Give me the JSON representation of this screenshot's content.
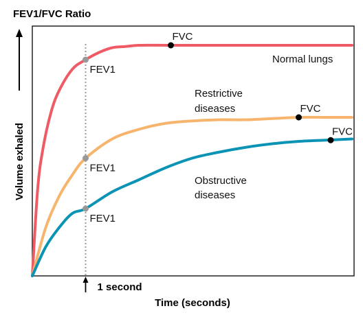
{
  "chart_data": {
    "type": "line",
    "title": "FEV1/FVC Ratio",
    "xlabel": "Time (seconds)",
    "ylabel": "Volume exhaled",
    "xlim": [
      0,
      6
    ],
    "ylim": [
      0,
      1
    ],
    "grid": false,
    "x_tick_labels": [
      {
        "x": 1,
        "label": "1 second"
      }
    ],
    "reference_line": {
      "x": 1,
      "style": "dotted",
      "color": "#999999"
    },
    "series": [
      {
        "name": "Normal lungs",
        "color": "#ef5b64",
        "x": [
          0,
          0.1,
          0.2,
          0.35,
          0.5,
          0.75,
          1.0,
          1.25,
          1.5,
          1.75,
          2.0,
          2.5,
          3.0,
          4.0,
          5.0,
          6.0
        ],
        "y": [
          0,
          0.36,
          0.53,
          0.68,
          0.77,
          0.86,
          0.9,
          0.93,
          0.95,
          0.955,
          0.96,
          0.96,
          0.96,
          0.96,
          0.96,
          0.96
        ],
        "fev1": {
          "x": 1.0,
          "y": 0.9,
          "label": "FEV1"
        },
        "fvc": {
          "x": 2.6,
          "y": 0.96,
          "label": "FVC"
        }
      },
      {
        "name": "Restrictive diseases",
        "color": "#f7b46c",
        "x": [
          0,
          0.25,
          0.5,
          0.75,
          1.0,
          1.5,
          2.0,
          2.5,
          3.0,
          3.5,
          4.0,
          4.5,
          5.0,
          5.5,
          6.0
        ],
        "y": [
          0,
          0.2,
          0.33,
          0.42,
          0.49,
          0.57,
          0.61,
          0.635,
          0.645,
          0.65,
          0.65,
          0.655,
          0.66,
          0.66,
          0.66
        ],
        "fev1": {
          "x": 1.0,
          "y": 0.49,
          "label": "FEV1"
        },
        "fvc": {
          "x": 5.0,
          "y": 0.66,
          "label": "FVC"
        }
      },
      {
        "name": "Obstructive diseases",
        "color": "#0a93b4",
        "x": [
          0,
          0.25,
          0.5,
          0.75,
          1.0,
          1.5,
          2.0,
          2.5,
          3.0,
          3.5,
          4.0,
          4.5,
          5.0,
          5.5,
          6.0
        ],
        "y": [
          0,
          0.12,
          0.2,
          0.26,
          0.28,
          0.35,
          0.4,
          0.45,
          0.49,
          0.515,
          0.535,
          0.55,
          0.56,
          0.565,
          0.57
        ],
        "fev1": {
          "x": 1.0,
          "y": 0.28,
          "label": "FEV1"
        },
        "fvc": {
          "x": 5.6,
          "y": 0.565,
          "label": "FVC"
        }
      }
    ]
  },
  "annotations": {
    "normal_label": "Normal lungs",
    "restrictive_line1": "Restrictive",
    "restrictive_line2": "diseases",
    "obstructive_line1": "Obstructive",
    "obstructive_line2": "diseases"
  }
}
